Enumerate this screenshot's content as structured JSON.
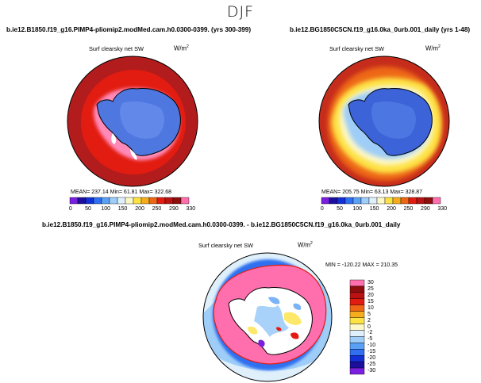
{
  "page": {
    "season": "DJF"
  },
  "case_a": {
    "title": "b.ie12.B1850.f19_g16.PIMP4-pliomip2.modMed.cam.h0.0300-0399. (yrs 300-399)",
    "field": "Surf clearsky net SW",
    "units": "W/m",
    "units_sup": "2",
    "stats": "MEAN= 237.14   Min=  61.81   Max= 322.68"
  },
  "case_b": {
    "title": "b.ie12.BG1850C5CN.f19_g16.0ka_0urb.001_daily (yrs 1-48)",
    "field": "Surf clearsky net SW",
    "units": "W/m",
    "units_sup": "2",
    "stats": "MEAN= 205.75   Min=  63.13   Max= 328.87"
  },
  "difference": {
    "title": "b.ie12.B1850.f19_g16.PIMP4-pliomip2.modMed.cam.h0.0300-0399. - b.ie12.BG1850C5CN.f19_g16.0ka_0urb.001_daily",
    "field": "Surf clearsky net SW",
    "units": "W/m",
    "units_sup": "2",
    "stats": "MIN = -120.22  MAX = 210.35"
  },
  "chart_data": [
    {
      "type": "heatmap",
      "title": "Surf clearsky net SW",
      "units": "W/m2",
      "projection": "south polar stereographic",
      "mean": 237.14,
      "min": 61.81,
      "max": 322.68,
      "colorbar": {
        "levels": [
          0,
          50,
          100,
          150,
          200,
          250,
          290,
          330
        ],
        "colors": [
          "#7a1fe0",
          "#1c0f9e",
          "#1230d6",
          "#2f6ff0",
          "#5aa0f5",
          "#9ecdf8",
          "#dff0fb",
          "#fdf8c8",
          "#fde244",
          "#f5ad1d",
          "#ee6717",
          "#e21c10",
          "#b81212",
          "#8f0d0d",
          "#ff6fae"
        ]
      },
      "regions": {
        "antarctica": "#4f77e0",
        "inner_ring": "#e41a10",
        "outer_ring": "#b31c1c"
      }
    },
    {
      "type": "heatmap",
      "title": "Surf clearsky net SW",
      "units": "W/m2",
      "projection": "south polar stereographic",
      "mean": 205.75,
      "min": 63.13,
      "max": 328.87,
      "colorbar": {
        "levels": [
          0,
          50,
          100,
          150,
          200,
          250,
          290,
          330
        ],
        "colors": [
          "#7a1fe0",
          "#1c0f9e",
          "#1230d6",
          "#2f6ff0",
          "#5aa0f5",
          "#9ecdf8",
          "#dff0fb",
          "#fdf8c8",
          "#fde244",
          "#f5ad1d",
          "#ee6717",
          "#e21c10",
          "#b81212",
          "#8f0d0d",
          "#ff6fae"
        ]
      },
      "regions": {
        "antarctica": "#3c63d8",
        "sea_ice_edge": "#fde244",
        "outer_ring": "#c62c1c"
      }
    },
    {
      "type": "heatmap",
      "title": "Surf clearsky net SW (difference)",
      "units": "W/m2",
      "projection": "south polar stereographic",
      "min": -120.22,
      "max": 210.35,
      "colorbar": {
        "levels": [
          "30",
          "25",
          "20",
          "15",
          "10",
          "5",
          "2",
          "0",
          "-2",
          "-5",
          "-10",
          "-15",
          "-20",
          "-25",
          "-30"
        ],
        "colors": [
          "#ff6fae",
          "#8f0d0d",
          "#b81212",
          "#e21c10",
          "#ee6717",
          "#f5ad1d",
          "#fde244",
          "#fdf8c8",
          "#dff0fb",
          "#9ecdf8",
          "#5aa0f5",
          "#2f6ff0",
          "#1230d6",
          "#1c0f9e",
          "#7a1fe0"
        ]
      },
      "regions": {
        "antarctica": "#ffffff",
        "sea_ice_zone": "#ff6fae",
        "outer_ocean": "#9ecdf8"
      }
    }
  ]
}
